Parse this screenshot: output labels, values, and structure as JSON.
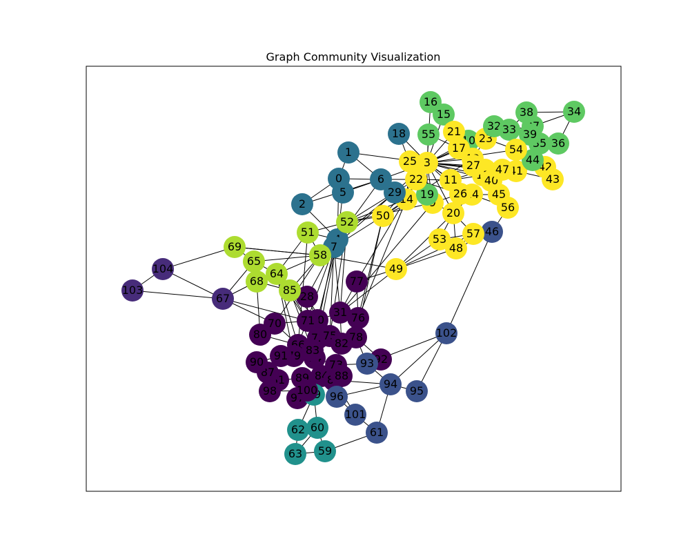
{
  "figure": {
    "title": "Graph Community Visualization"
  },
  "palette": {
    "c0": "#440154",
    "c1": "#472c7a",
    "c2": "#3b528b",
    "c3": "#2c728e",
    "c4": "#21918c",
    "c5": "#5ec962",
    "c6": "#addc30",
    "c7": "#fde725"
  },
  "graph": {
    "nodes": [
      {
        "id": "0",
        "community": "c3"
      },
      {
        "id": "1",
        "community": "c3"
      },
      {
        "id": "2",
        "community": "c3"
      },
      {
        "id": "3",
        "community": "c7"
      },
      {
        "id": "4",
        "community": "c3"
      },
      {
        "id": "5",
        "community": "c3"
      },
      {
        "id": "6",
        "community": "c3"
      },
      {
        "id": "7",
        "community": "c3"
      },
      {
        "id": "8",
        "community": "c7"
      },
      {
        "id": "9",
        "community": "c7"
      },
      {
        "id": "10",
        "community": "c5"
      },
      {
        "id": "11",
        "community": "c7"
      },
      {
        "id": "12",
        "community": "c7"
      },
      {
        "id": "13",
        "community": "c7"
      },
      {
        "id": "14",
        "community": "c7"
      },
      {
        "id": "15",
        "community": "c5"
      },
      {
        "id": "16",
        "community": "c5"
      },
      {
        "id": "17",
        "community": "c7"
      },
      {
        "id": "18",
        "community": "c3"
      },
      {
        "id": "19",
        "community": "c5"
      },
      {
        "id": "20",
        "community": "c7"
      },
      {
        "id": "21",
        "community": "c7"
      },
      {
        "id": "22",
        "community": "c7"
      },
      {
        "id": "23",
        "community": "c7"
      },
      {
        "id": "24",
        "community": "c7"
      },
      {
        "id": "25",
        "community": "c7"
      },
      {
        "id": "26",
        "community": "c7"
      },
      {
        "id": "27",
        "community": "c7"
      },
      {
        "id": "28",
        "community": "c0"
      },
      {
        "id": "29",
        "community": "c3"
      },
      {
        "id": "30",
        "community": "c0"
      },
      {
        "id": "31",
        "community": "c0"
      },
      {
        "id": "32",
        "community": "c5"
      },
      {
        "id": "33",
        "community": "c5"
      },
      {
        "id": "34",
        "community": "c5"
      },
      {
        "id": "35",
        "community": "c5"
      },
      {
        "id": "36",
        "community": "c5"
      },
      {
        "id": "37",
        "community": "c5"
      },
      {
        "id": "38",
        "community": "c5"
      },
      {
        "id": "39",
        "community": "c5"
      },
      {
        "id": "40",
        "community": "c7"
      },
      {
        "id": "41",
        "community": "c7"
      },
      {
        "id": "42",
        "community": "c7"
      },
      {
        "id": "43",
        "community": "c7"
      },
      {
        "id": "44",
        "community": "c5"
      },
      {
        "id": "45",
        "community": "c7"
      },
      {
        "id": "46",
        "community": "c2"
      },
      {
        "id": "47",
        "community": "c7"
      },
      {
        "id": "48",
        "community": "c7"
      },
      {
        "id": "49",
        "community": "c7"
      },
      {
        "id": "50",
        "community": "c7"
      },
      {
        "id": "51",
        "community": "c6"
      },
      {
        "id": "52",
        "community": "c6"
      },
      {
        "id": "53",
        "community": "c7"
      },
      {
        "id": "54",
        "community": "c7"
      },
      {
        "id": "55",
        "community": "c5"
      },
      {
        "id": "56",
        "community": "c7"
      },
      {
        "id": "57",
        "community": "c7"
      },
      {
        "id": "58",
        "community": "c6"
      },
      {
        "id": "59",
        "community": "c4"
      },
      {
        "id": "60",
        "community": "c4"
      },
      {
        "id": "61",
        "community": "c2"
      },
      {
        "id": "62",
        "community": "c4"
      },
      {
        "id": "63",
        "community": "c4"
      },
      {
        "id": "64",
        "community": "c6"
      },
      {
        "id": "65",
        "community": "c6"
      },
      {
        "id": "66",
        "community": "c0"
      },
      {
        "id": "67",
        "community": "c1"
      },
      {
        "id": "68",
        "community": "c6"
      },
      {
        "id": "69",
        "community": "c6"
      },
      {
        "id": "70",
        "community": "c0"
      },
      {
        "id": "71",
        "community": "c0"
      },
      {
        "id": "72",
        "community": "c0"
      },
      {
        "id": "73",
        "community": "c0"
      },
      {
        "id": "74",
        "community": "c0"
      },
      {
        "id": "75",
        "community": "c0"
      },
      {
        "id": "76",
        "community": "c0"
      },
      {
        "id": "77",
        "community": "c0"
      },
      {
        "id": "78",
        "community": "c0"
      },
      {
        "id": "79",
        "community": "c0"
      },
      {
        "id": "80",
        "community": "c0"
      },
      {
        "id": "81",
        "community": "c0"
      },
      {
        "id": "82",
        "community": "c0"
      },
      {
        "id": "83",
        "community": "c0"
      },
      {
        "id": "84",
        "community": "c0"
      },
      {
        "id": "85",
        "community": "c6"
      },
      {
        "id": "86",
        "community": "c0"
      },
      {
        "id": "87",
        "community": "c0"
      },
      {
        "id": "88",
        "community": "c0"
      },
      {
        "id": "89",
        "community": "c0"
      },
      {
        "id": "90",
        "community": "c0"
      },
      {
        "id": "91",
        "community": "c0"
      },
      {
        "id": "92",
        "community": "c0"
      },
      {
        "id": "93",
        "community": "c2"
      },
      {
        "id": "94",
        "community": "c2"
      },
      {
        "id": "95",
        "community": "c2"
      },
      {
        "id": "96",
        "community": "c2"
      },
      {
        "id": "97",
        "community": "c0"
      },
      {
        "id": "98",
        "community": "c0"
      },
      {
        "id": "99",
        "community": "c4"
      },
      {
        "id": "100",
        "community": "c0"
      },
      {
        "id": "101",
        "community": "c2"
      },
      {
        "id": "102",
        "community": "c2"
      },
      {
        "id": "103",
        "community": "c1"
      },
      {
        "id": "104",
        "community": "c1"
      }
    ],
    "edges": [
      [
        "0",
        "1"
      ],
      [
        "0",
        "2"
      ],
      [
        "0",
        "5"
      ],
      [
        "0",
        "6"
      ],
      [
        "1",
        "6"
      ],
      [
        "1",
        "3"
      ],
      [
        "2",
        "4"
      ],
      [
        "2",
        "6"
      ],
      [
        "5",
        "6"
      ],
      [
        "4",
        "6"
      ],
      [
        "6",
        "29"
      ],
      [
        "6",
        "14"
      ],
      [
        "6",
        "22"
      ],
      [
        "6",
        "3"
      ],
      [
        "18",
        "3"
      ],
      [
        "18",
        "22"
      ],
      [
        "0",
        "4"
      ],
      [
        "5",
        "4"
      ],
      [
        "3",
        "25"
      ],
      [
        "3",
        "22"
      ],
      [
        "3",
        "11"
      ],
      [
        "3",
        "17"
      ],
      [
        "3",
        "21"
      ],
      [
        "3",
        "55"
      ],
      [
        "3",
        "12"
      ],
      [
        "3",
        "13"
      ],
      [
        "3",
        "24"
      ],
      [
        "3",
        "26"
      ],
      [
        "3",
        "27"
      ],
      [
        "3",
        "9"
      ],
      [
        "3",
        "14"
      ],
      [
        "3",
        "19"
      ],
      [
        "3",
        "29"
      ],
      [
        "3",
        "10"
      ],
      [
        "3",
        "23"
      ],
      [
        "3",
        "8"
      ],
      [
        "3",
        "40"
      ],
      [
        "3",
        "47"
      ],
      [
        "3",
        "41"
      ],
      [
        "3",
        "54"
      ],
      [
        "3",
        "20"
      ],
      [
        "16",
        "15"
      ],
      [
        "16",
        "3"
      ],
      [
        "15",
        "3"
      ],
      [
        "55",
        "17"
      ],
      [
        "21",
        "17"
      ],
      [
        "21",
        "10"
      ],
      [
        "17",
        "10"
      ],
      [
        "17",
        "12"
      ],
      [
        "10",
        "23"
      ],
      [
        "10",
        "12"
      ],
      [
        "23",
        "12"
      ],
      [
        "23",
        "54"
      ],
      [
        "23",
        "32"
      ],
      [
        "32",
        "33"
      ],
      [
        "33",
        "37"
      ],
      [
        "33",
        "39"
      ],
      [
        "33",
        "38"
      ],
      [
        "33",
        "54"
      ],
      [
        "38",
        "37"
      ],
      [
        "38",
        "34"
      ],
      [
        "34",
        "37"
      ],
      [
        "34",
        "36"
      ],
      [
        "37",
        "39"
      ],
      [
        "37",
        "35"
      ],
      [
        "39",
        "35"
      ],
      [
        "35",
        "36"
      ],
      [
        "35",
        "44"
      ],
      [
        "44",
        "54"
      ],
      [
        "44",
        "41"
      ],
      [
        "44",
        "42"
      ],
      [
        "42",
        "43"
      ],
      [
        "42",
        "41"
      ],
      [
        "43",
        "41"
      ],
      [
        "41",
        "47"
      ],
      [
        "40",
        "47"
      ],
      [
        "40",
        "45"
      ],
      [
        "45",
        "56"
      ],
      [
        "45",
        "24"
      ],
      [
        "56",
        "24"
      ],
      [
        "56",
        "46"
      ],
      [
        "46",
        "48"
      ],
      [
        "46",
        "102"
      ],
      [
        "12",
        "27"
      ],
      [
        "27",
        "8"
      ],
      [
        "8",
        "13"
      ],
      [
        "13",
        "40"
      ],
      [
        "11",
        "26"
      ],
      [
        "11",
        "22"
      ],
      [
        "11",
        "13"
      ],
      [
        "11",
        "8"
      ],
      [
        "22",
        "25"
      ],
      [
        "22",
        "14"
      ],
      [
        "22",
        "9"
      ],
      [
        "22",
        "26"
      ],
      [
        "22",
        "29"
      ],
      [
        "25",
        "14"
      ],
      [
        "19",
        "9"
      ],
      [
        "19",
        "14"
      ],
      [
        "9",
        "26"
      ],
      [
        "9",
        "20"
      ],
      [
        "26",
        "24"
      ],
      [
        "24",
        "20"
      ],
      [
        "20",
        "53"
      ],
      [
        "20",
        "48"
      ],
      [
        "20",
        "57"
      ],
      [
        "53",
        "57"
      ],
      [
        "53",
        "48"
      ],
      [
        "57",
        "48"
      ],
      [
        "53",
        "49"
      ],
      [
        "48",
        "49"
      ],
      [
        "57",
        "49"
      ],
      [
        "20",
        "49"
      ],
      [
        "14",
        "52"
      ],
      [
        "14",
        "50"
      ],
      [
        "50",
        "52"
      ],
      [
        "50",
        "7"
      ],
      [
        "29",
        "52"
      ],
      [
        "29",
        "4"
      ],
      [
        "9",
        "52"
      ],
      [
        "19",
        "50"
      ],
      [
        "22",
        "50"
      ],
      [
        "12",
        "50"
      ],
      [
        "52",
        "51"
      ],
      [
        "52",
        "4"
      ],
      [
        "52",
        "58"
      ],
      [
        "4",
        "7"
      ],
      [
        "4",
        "58"
      ],
      [
        "7",
        "58"
      ],
      [
        "51",
        "58"
      ],
      [
        "51",
        "4"
      ],
      [
        "51",
        "64"
      ],
      [
        "58",
        "64"
      ],
      [
        "58",
        "65"
      ],
      [
        "58",
        "85"
      ],
      [
        "58",
        "49"
      ],
      [
        "58",
        "69"
      ],
      [
        "64",
        "65"
      ],
      [
        "64",
        "68"
      ],
      [
        "64",
        "85"
      ],
      [
        "65",
        "68"
      ],
      [
        "65",
        "69"
      ],
      [
        "69",
        "104"
      ],
      [
        "69",
        "58"
      ],
      [
        "104",
        "103"
      ],
      [
        "104",
        "67"
      ],
      [
        "103",
        "67"
      ],
      [
        "67",
        "68"
      ],
      [
        "67",
        "65"
      ],
      [
        "67",
        "70"
      ],
      [
        "67",
        "71"
      ],
      [
        "68",
        "85"
      ],
      [
        "85",
        "28"
      ],
      [
        "85",
        "71"
      ],
      [
        "85",
        "30"
      ],
      [
        "28",
        "71"
      ],
      [
        "28",
        "30"
      ],
      [
        "28",
        "75"
      ],
      [
        "71",
        "30"
      ],
      [
        "30",
        "31"
      ],
      [
        "31",
        "76"
      ],
      [
        "31",
        "77"
      ],
      [
        "77",
        "76"
      ],
      [
        "76",
        "78"
      ],
      [
        "76",
        "82"
      ],
      [
        "31",
        "82"
      ],
      [
        "30",
        "72"
      ],
      [
        "71",
        "72"
      ],
      [
        "72",
        "75"
      ],
      [
        "75",
        "82"
      ],
      [
        "75",
        "66"
      ],
      [
        "72",
        "66"
      ],
      [
        "66",
        "80"
      ],
      [
        "70",
        "80"
      ],
      [
        "70",
        "66"
      ],
      [
        "70",
        "71"
      ],
      [
        "66",
        "83"
      ],
      [
        "83",
        "74"
      ],
      [
        "74",
        "73"
      ],
      [
        "73",
        "82"
      ],
      [
        "73",
        "84"
      ],
      [
        "84",
        "88"
      ],
      [
        "84",
        "86"
      ],
      [
        "88",
        "86"
      ],
      [
        "73",
        "93"
      ],
      [
        "93",
        "92"
      ],
      [
        "93",
        "78"
      ],
      [
        "93",
        "94"
      ],
      [
        "93",
        "102"
      ],
      [
        "92",
        "78"
      ],
      [
        "83",
        "79"
      ],
      [
        "79",
        "91"
      ],
      [
        "91",
        "90"
      ],
      [
        "90",
        "87"
      ],
      [
        "87",
        "81"
      ],
      [
        "81",
        "98"
      ],
      [
        "98",
        "100"
      ],
      [
        "100",
        "97"
      ],
      [
        "97",
        "99"
      ],
      [
        "99",
        "89"
      ],
      [
        "89",
        "84"
      ],
      [
        "89",
        "81"
      ],
      [
        "84",
        "96"
      ],
      [
        "96",
        "86"
      ],
      [
        "96",
        "101"
      ],
      [
        "101",
        "61"
      ],
      [
        "61",
        "94"
      ],
      [
        "94",
        "95"
      ],
      [
        "95",
        "102"
      ],
      [
        "94",
        "102"
      ],
      [
        "96",
        "94"
      ],
      [
        "99",
        "60"
      ],
      [
        "99",
        "62"
      ],
      [
        "60",
        "62"
      ],
      [
        "62",
        "63"
      ],
      [
        "60",
        "59"
      ],
      [
        "59",
        "63"
      ],
      [
        "59",
        "61"
      ],
      [
        "60",
        "63"
      ],
      [
        "101",
        "86"
      ],
      [
        "94",
        "86"
      ],
      [
        "7",
        "31"
      ],
      [
        "7",
        "75"
      ],
      [
        "7",
        "28"
      ],
      [
        "4",
        "72"
      ],
      [
        "52",
        "31"
      ],
      [
        "50",
        "76"
      ],
      [
        "49",
        "31"
      ],
      [
        "49",
        "77"
      ],
      [
        "9",
        "31"
      ],
      [
        "14",
        "76"
      ],
      [
        "51",
        "66"
      ],
      [
        "58",
        "70"
      ],
      [
        "64",
        "79"
      ],
      [
        "64",
        "66"
      ],
      [
        "77",
        "3"
      ],
      [
        "7",
        "66"
      ],
      [
        "52",
        "75"
      ],
      [
        "85",
        "83"
      ],
      [
        "68",
        "80"
      ],
      [
        "64",
        "72"
      ],
      [
        "50",
        "78"
      ],
      [
        "7",
        "83"
      ],
      [
        "4",
        "30"
      ],
      [
        "29",
        "7"
      ]
    ]
  }
}
